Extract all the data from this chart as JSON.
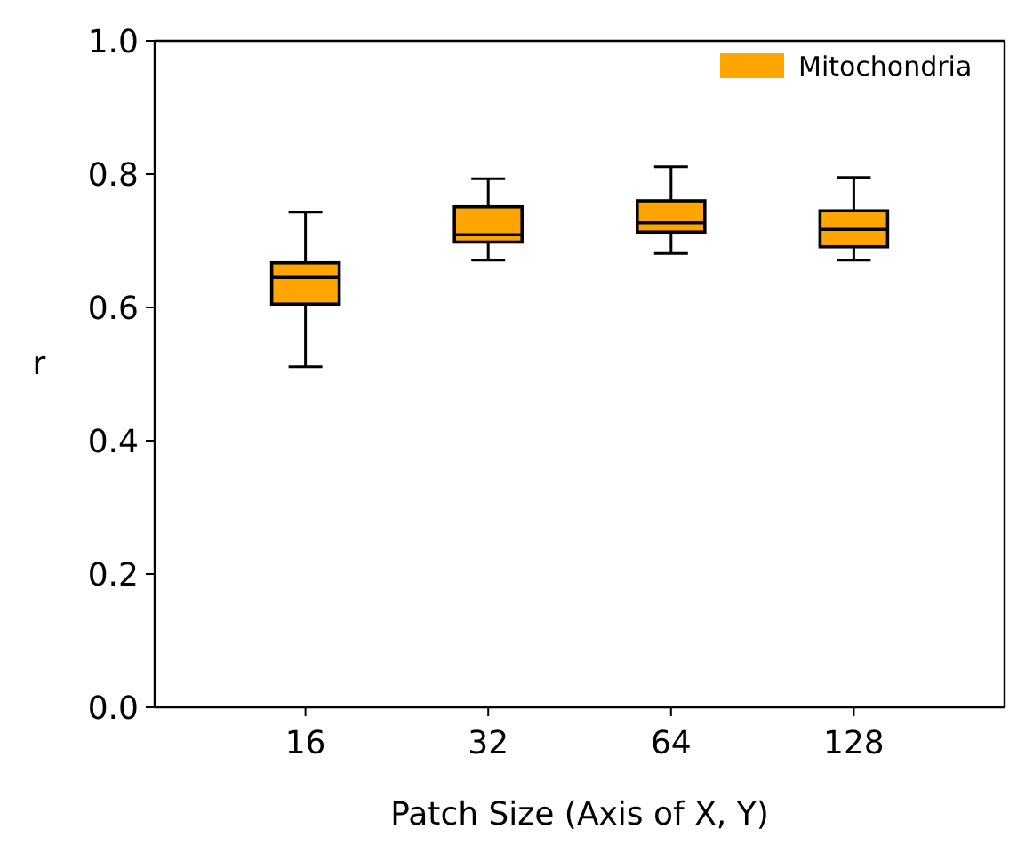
{
  "chart_data": {
    "type": "box",
    "xlabel": "Patch Size (Axis of X, Y)",
    "ylabel": "r",
    "categories": [
      "16",
      "32",
      "64",
      "128"
    ],
    "ylim": [
      0,
      1
    ],
    "yticks": [
      {
        "value": 0,
        "label": "0.0"
      },
      {
        "value": 0.2,
        "label": "0.2"
      },
      {
        "value": 0.4,
        "label": "0.4"
      },
      {
        "value": 0.6,
        "label": "0.6"
      },
      {
        "value": 0.8,
        "label": "0.8"
      },
      {
        "value": 1,
        "label": "1.0"
      }
    ],
    "legend": "top right",
    "grid": false,
    "series": [
      {
        "name": "Mitochondria",
        "color": "#ffa500",
        "boxes": [
          {
            "low": 0.511,
            "q1": 0.605,
            "median": 0.645,
            "q3": 0.667,
            "high": 0.743
          },
          {
            "low": 0.671,
            "q1": 0.698,
            "median": 0.709,
            "q3": 0.751,
            "high": 0.793
          },
          {
            "low": 0.681,
            "q1": 0.713,
            "median": 0.727,
            "q3": 0.76,
            "high": 0.811
          },
          {
            "low": 0.671,
            "q1": 0.691,
            "median": 0.717,
            "q3": 0.745,
            "high": 0.795
          }
        ]
      }
    ]
  }
}
